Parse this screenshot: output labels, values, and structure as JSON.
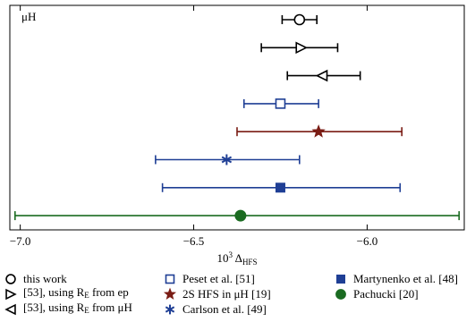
{
  "chart_data": {
    "type": "scatter",
    "annotation": "μH",
    "xlabel": "10",
    "xlabel_sup": "3",
    "xlabel_sym": " Δ",
    "xlabel_sub": "HFS",
    "xlim": [
      -7.03,
      -5.72
    ],
    "xticks": [
      -7.0,
      -6.5,
      -6.0
    ],
    "xtick_labels": [
      "−7.0",
      "−6.5",
      "−6.0"
    ],
    "grid": false,
    "legend_placement": "below",
    "series": [
      {
        "name": "this work",
        "marker": "circle-open",
        "color": "#000000",
        "value": -6.195,
        "err_lo": -6.245,
        "err_hi": -6.145
      },
      {
        "name": "[53], using R_E from ep",
        "marker": "triangle-right-open",
        "color": "#000000",
        "value": -6.19,
        "err_lo": -6.305,
        "err_hi": -6.085
      },
      {
        "name": "[53], using R_E from μH",
        "marker": "triangle-left-open",
        "color": "#000000",
        "value": -6.13,
        "err_lo": -6.23,
        "err_hi": -6.02
      },
      {
        "name": "Peset et al. [51]",
        "marker": "square-open",
        "color": "#1f3f95",
        "value": -6.25,
        "err_lo": -6.355,
        "err_hi": -6.14
      },
      {
        "name": "2S HFS in μH [19]",
        "marker": "star",
        "color": "#7a1c14",
        "value": -6.14,
        "err_lo": -6.375,
        "err_hi": -5.9
      },
      {
        "name": "Carlson et al. [49]",
        "marker": "asterisk",
        "color": "#1f3f95",
        "value": -6.405,
        "err_lo": -6.61,
        "err_hi": -6.195
      },
      {
        "name": "Martynenko et al. [48]",
        "marker": "square-filled",
        "color": "#1f3f95",
        "value": -6.25,
        "err_lo": -6.59,
        "err_hi": -5.905
      },
      {
        "name": "Pachucki [20]",
        "marker": "circle-filled",
        "color": "#1a6b21",
        "value": -6.365,
        "err_lo": -7.015,
        "err_hi": -5.735
      }
    ]
  },
  "legend": {
    "items": [
      {
        "label": "this work",
        "marker": "circle-open",
        "color": "#000000"
      },
      {
        "label": "Peset et al. [51]",
        "marker": "square-open",
        "color": "#1f3f95"
      },
      {
        "label": "Martynenko et al. [48]",
        "marker": "square-filled",
        "color": "#1f3f95"
      },
      {
        "label": "[53], using R",
        "sub": "E",
        "after": " from ep",
        "marker": "triangle-right-open",
        "color": "#000000"
      },
      {
        "label": "2S HFS in μH [19]",
        "marker": "star",
        "color": "#7a1c14"
      },
      {
        "label": "Pachucki [20]",
        "marker": "circle-filled",
        "color": "#1a6b21"
      },
      {
        "label": "[53], using R",
        "sub": "E",
        "after": " from μH",
        "marker": "triangle-left-open",
        "color": "#000000"
      },
      {
        "label": "Carlson et al. [49]",
        "marker": "asterisk",
        "color": "#1f3f95"
      }
    ]
  }
}
